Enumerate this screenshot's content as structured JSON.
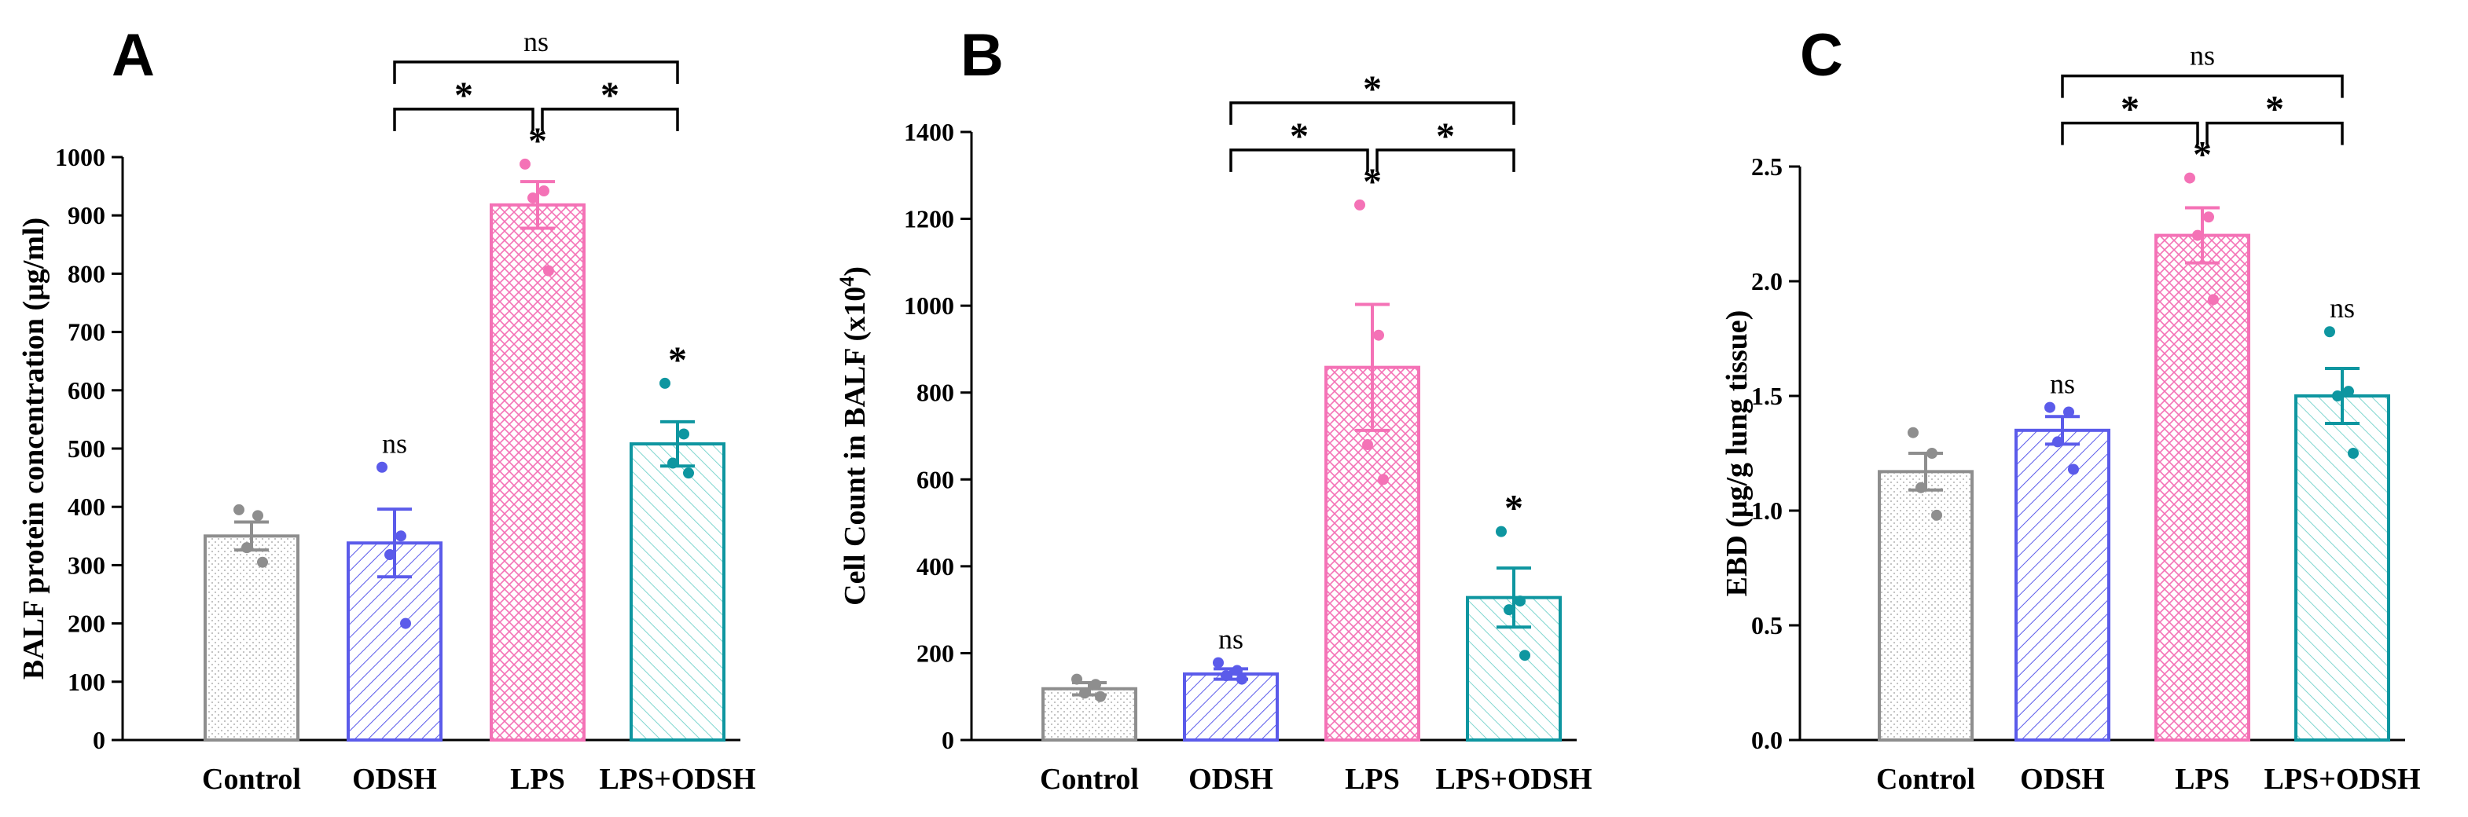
{
  "colors": {
    "Control": "#8e8e8e",
    "ODSH": "#5b5bea",
    "LPS": "#f472b6",
    "LPS+ODSH": "#0e96a0",
    "axis": "#000000"
  },
  "chart_data": [
    {
      "panel": "A",
      "type": "bar",
      "ylabel": "BALF protein concentration (μg/ml)",
      "ylim": [
        0,
        1000
      ],
      "yticks": [
        0,
        100,
        200,
        300,
        400,
        500,
        600,
        700,
        800,
        900,
        1000
      ],
      "tick_labels": [
        "0",
        "100",
        "200",
        "300",
        "400",
        "500",
        "600",
        "700",
        "800",
        "900",
        "1000"
      ],
      "categories": [
        "Control",
        "ODSH",
        "LPS",
        "LPS+ODSH"
      ],
      "values": [
        350,
        338,
        918,
        508
      ],
      "errors": [
        24,
        58,
        40,
        38
      ],
      "points": [
        [
          395,
          385,
          330,
          305
        ],
        [
          468,
          350,
          318,
          200
        ],
        [
          988,
          942,
          930,
          805
        ],
        [
          612,
          525,
          475,
          458
        ]
      ],
      "labels": [
        "",
        "ns",
        "*",
        "*"
      ],
      "comparisons": [
        {
          "from": 2,
          "to": 1,
          "level": 1,
          "label": "*"
        },
        {
          "from": 2,
          "to": 3,
          "level": 1,
          "label": "*"
        },
        {
          "from": 1,
          "to": 3,
          "level": 2,
          "label": "ns"
        }
      ]
    },
    {
      "panel": "B",
      "type": "bar",
      "ylabel_main": "Cell Count in BALF (x10",
      "ylabel_sup": "4",
      "ylabel_end": ")",
      "ylim": [
        0,
        1400
      ],
      "yticks": [
        0,
        200,
        400,
        600,
        800,
        1000,
        1200,
        1400
      ],
      "tick_labels": [
        "0",
        "200",
        "400",
        "600",
        "800",
        "1000",
        "1200",
        "1400"
      ],
      "categories": [
        "Control",
        "ODSH",
        "LPS",
        "LPS+ODSH"
      ],
      "values": [
        118,
        152,
        858,
        328
      ],
      "errors": [
        14,
        12,
        145,
        68
      ],
      "points": [
        [
          140,
          128,
          108,
          100
        ],
        [
          178,
          160,
          148,
          140
        ],
        [
          1232,
          932,
          680,
          600
        ],
        [
          480,
          320,
          300,
          195
        ]
      ],
      "labels": [
        "",
        "ns",
        "*",
        "*"
      ],
      "comparisons": [
        {
          "from": 2,
          "to": 1,
          "level": 1,
          "label": "*"
        },
        {
          "from": 2,
          "to": 3,
          "level": 1,
          "label": "*"
        },
        {
          "from": 1,
          "to": 3,
          "level": 2,
          "label": "*"
        }
      ]
    },
    {
      "panel": "C",
      "type": "bar",
      "ylabel": "EBD (μg/g lung tissue)",
      "ylim": [
        0,
        2.5
      ],
      "yticks": [
        0,
        0.5,
        1.0,
        1.5,
        2.0,
        2.5
      ],
      "tick_labels": [
        "0.0",
        "0.5",
        "1.0",
        "1.5",
        "2.0",
        "2.5"
      ],
      "categories": [
        "Control",
        "ODSH",
        "LPS",
        "LPS+ODSH"
      ],
      "values": [
        1.17,
        1.35,
        2.2,
        1.5
      ],
      "errors": [
        0.08,
        0.06,
        0.12,
        0.12
      ],
      "points": [
        [
          1.34,
          1.25,
          1.1,
          0.98
        ],
        [
          1.45,
          1.43,
          1.3,
          1.18
        ],
        [
          2.45,
          2.28,
          2.2,
          1.92
        ],
        [
          1.78,
          1.52,
          1.5,
          1.25
        ]
      ],
      "labels": [
        "",
        "ns",
        "*",
        "ns"
      ],
      "comparisons": [
        {
          "from": 2,
          "to": 1,
          "level": 1,
          "label": "*"
        },
        {
          "from": 2,
          "to": 3,
          "level": 1,
          "label": "*"
        },
        {
          "from": 1,
          "to": 3,
          "level": 2,
          "label": "ns"
        }
      ]
    }
  ]
}
